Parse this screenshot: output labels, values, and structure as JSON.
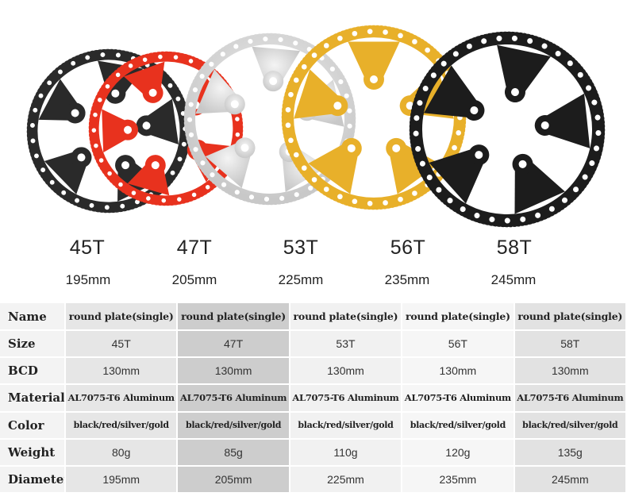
{
  "products": [
    {
      "teeth": "45T",
      "diameter": "195mm",
      "color": "#2a2a2a"
    },
    {
      "teeth": "47T",
      "diameter": "205mm",
      "color": "#e8321e"
    },
    {
      "teeth": "53T",
      "diameter": "225mm",
      "color": "#dcdcdc"
    },
    {
      "teeth": "56T",
      "diameter": "235mm",
      "color": "#e8b02a"
    },
    {
      "teeth": "58T",
      "diameter": "245mm",
      "color": "#1c1c1c"
    }
  ],
  "table": {
    "rows": [
      {
        "label": "Name",
        "values": [
          "round plate(single)",
          "round plate(single)",
          "round plate(single)",
          "round plate(single)",
          "round plate(single)"
        ]
      },
      {
        "label": "Size",
        "values": [
          "45T",
          "47T",
          "53T",
          "56T",
          "58T"
        ]
      },
      {
        "label": "BCD",
        "values": [
          "130mm",
          "130mm",
          "130mm",
          "130mm",
          "130mm"
        ]
      },
      {
        "label": "Material",
        "values": [
          "AL7075-T6 Aluminum",
          "AL7075-T6 Aluminum",
          "AL7075-T6 Aluminum",
          "AL7075-T6 Aluminum",
          "AL7075-T6 Aluminum"
        ]
      },
      {
        "label": "Color",
        "values": [
          "black/red/silver/gold",
          "black/red/silver/gold",
          "black/red/silver/gold",
          "black/red/silver/gold",
          "black/red/silver/gold"
        ]
      },
      {
        "label": "Weight",
        "values": [
          "80g",
          "85g",
          "110g",
          "120g",
          "135g"
        ]
      },
      {
        "label": "Diameter",
        "values": [
          "195mm",
          "205mm",
          "225mm",
          "235mm",
          "245mm"
        ]
      }
    ]
  }
}
